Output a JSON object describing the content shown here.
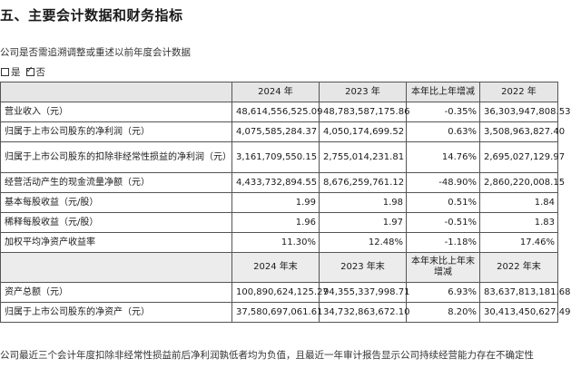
{
  "section_title": "五、主要会计数据和财务指标",
  "question": "公司是否需追溯调整或重述以前年度会计数据",
  "options": [
    {
      "label": "是",
      "checked": false
    },
    {
      "label": "否",
      "checked": true
    }
  ],
  "table1": {
    "headers": [
      "",
      "2024 年",
      "2023 年",
      "本年比上年增减",
      "2022 年"
    ],
    "rows": [
      {
        "label": "营业收入（元）",
        "cells": [
          "48,614,556,525.09",
          "48,783,587,175.86",
          "-0.35%",
          "36,303,947,808.53"
        ]
      },
      {
        "label": "归属于上市公司股东的净利润（元）",
        "cells": [
          "4,075,585,284.37",
          "4,050,174,699.52",
          "0.63%",
          "3,508,963,827.40"
        ]
      },
      {
        "label": "归属于上市公司股东的扣除非经常性损益的净利润（元）",
        "cells": [
          "3,161,709,550.15",
          "2,755,014,231.81",
          "14.76%",
          "2,695,027,129.97"
        ]
      },
      {
        "label": "经营活动产生的现金流量净额（元）",
        "cells": [
          "4,433,732,894.55",
          "8,676,259,761.12",
          "-48.90%",
          "2,860,220,008.15"
        ]
      },
      {
        "label": "基本每股收益（元/股）",
        "cells": [
          "1.99",
          "1.98",
          "0.51%",
          "1.84"
        ]
      },
      {
        "label": "稀释每股收益（元/股）",
        "cells": [
          "1.96",
          "1.97",
          "-0.51%",
          "1.83"
        ]
      },
      {
        "label": "加权平均净资产收益率",
        "cells": [
          "11.30%",
          "12.48%",
          "-1.18%",
          "17.46%"
        ]
      }
    ]
  },
  "table2": {
    "headers": [
      "",
      "2024 年末",
      "2023 年末",
      "本年末比上年末增减",
      "2022 年末"
    ],
    "rows": [
      {
        "label": "资产总额（元）",
        "cells": [
          "100,890,624,125.27",
          "94,355,337,998.71",
          "6.93%",
          "83,637,813,181.68"
        ]
      },
      {
        "label": "归属于上市公司股东的净资产（元）",
        "cells": [
          "37,580,697,061.61",
          "34,732,863,672.10",
          "8.20%",
          "30,413,450,627.49"
        ]
      }
    ]
  },
  "footnote": "公司最近三个会计年度扣除非经常性损益前后净利润孰低者均为负值，且最近一年审计报告显示公司持续经营能力存在不确定性"
}
